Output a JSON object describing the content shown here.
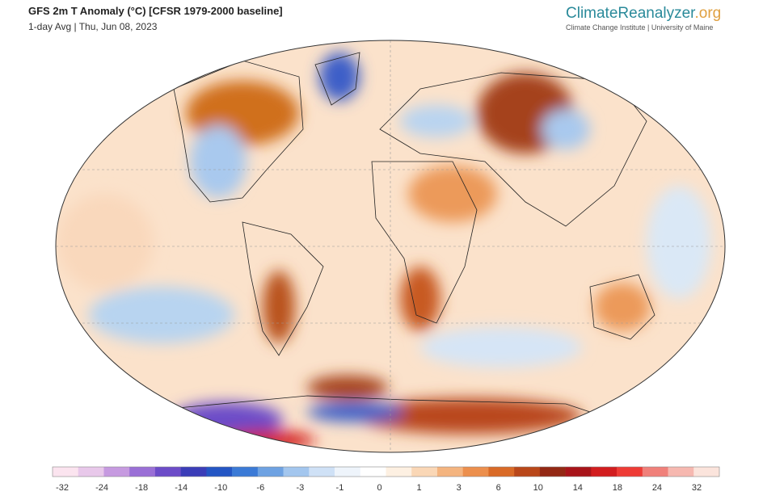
{
  "header": {
    "title": "GFS 2m T Anomaly (°C) [CFSR 1979-2000 baseline]",
    "subtitle": "1-day Avg | Thu, Jun 08, 2023",
    "logo_name": "ClimateReanalyzer",
    "logo_suffix": ".org",
    "logo_tagline": "Climate Change Institute | University of Maine"
  },
  "colorbar": {
    "labels": [
      "-32",
      "-24",
      "-18",
      "-14",
      "-10",
      "-6",
      "-3",
      "-1",
      "0",
      "1",
      "3",
      "6",
      "10",
      "14",
      "18",
      "24",
      "32"
    ],
    "colors": [
      "#fbe4ef",
      "#e8c8ea",
      "#c69ae0",
      "#9a6fd6",
      "#6c4cc8",
      "#3b3db8",
      "#2456c4",
      "#3b7ad6",
      "#6ea2e2",
      "#a3c6ee",
      "#cfe1f6",
      "#eef4fb",
      "#ffffff",
      "#fdf0e2",
      "#fad7b6",
      "#f4b47f",
      "#ec8f4d",
      "#d96a27",
      "#b9471a",
      "#932814",
      "#a8141a",
      "#d21d1f",
      "#ee3b35",
      "#f0807a",
      "#f6b8b0",
      "#fbe4dc"
    ]
  }
}
